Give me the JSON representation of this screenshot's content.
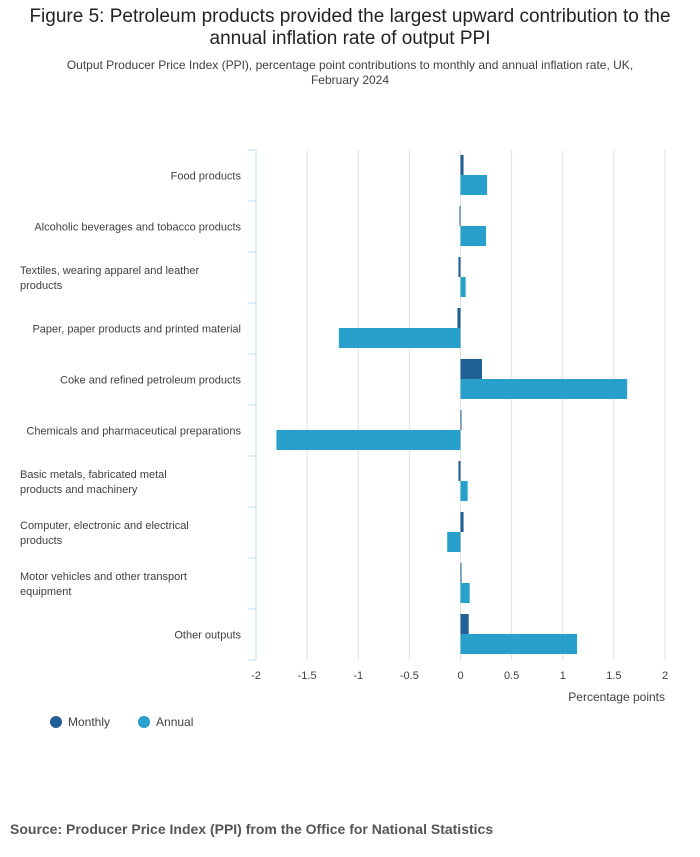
{
  "title": "Figure 5: Petroleum products provided the largest upward contribution to the annual inflation rate of output PPI",
  "subtitle": "Output Producer Price Index (PPI), percentage point contributions to monthly and annual inflation rate, UK, February 2024",
  "source": "Source: Producer Price Index (PPI) from the Office for National Statistics",
  "colors": {
    "monthly": "#206095",
    "annual": "#27a0cc",
    "grid": "#e0e0e0",
    "axis": "#c6dcef"
  },
  "chart_data": {
    "type": "bar",
    "orientation": "horizontal",
    "xlabel": "Percentage points",
    "xlim": [
      -2,
      2
    ],
    "xticks": [
      -2,
      -1.5,
      -1,
      -0.5,
      0,
      0.5,
      1,
      1.5,
      2
    ],
    "xtick_labels": [
      "-2",
      "-1.5",
      "-1",
      "-0.5",
      "0",
      "0.5",
      "1",
      "1.5",
      "2"
    ],
    "categories": [
      "Food products",
      "Alcoholic beverages and tobacco products",
      "Textiles, wearing apparel and leather products",
      "Paper, paper products and printed material",
      "Coke and refined petroleum products",
      "Chemicals and pharmaceutical preparations",
      "Basic metals, fabricated metal products and machinery",
      "Computer, electronic and electrical products",
      "Motor vehicles and other transport equipment",
      "Other outputs"
    ],
    "series": [
      {
        "name": "Monthly",
        "values": [
          0.03,
          -0.01,
          -0.02,
          -0.03,
          0.21,
          0.01,
          -0.02,
          0.03,
          0.01,
          0.08
        ]
      },
      {
        "name": "Annual",
        "values": [
          0.26,
          0.25,
          0.05,
          -1.19,
          1.63,
          -1.8,
          0.07,
          -0.13,
          0.09,
          1.14
        ]
      }
    ],
    "legend_position": "bottom-left"
  }
}
